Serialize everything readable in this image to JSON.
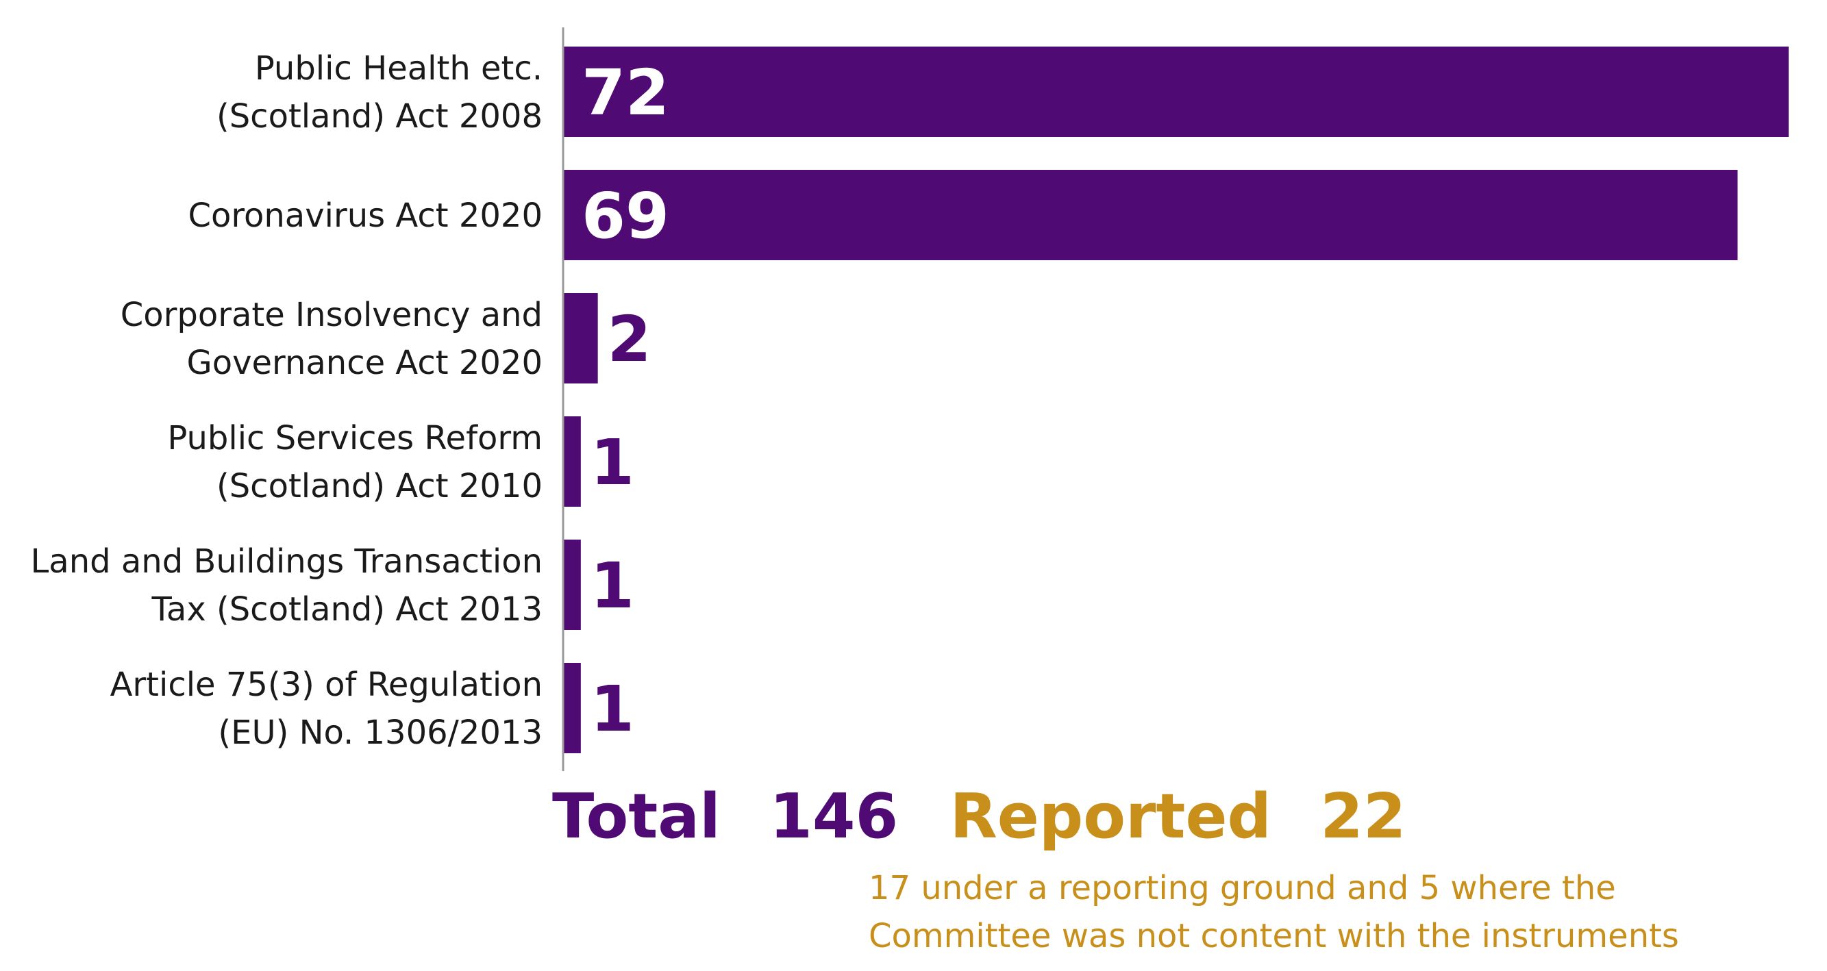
{
  "colors": {
    "bar": "#500a73",
    "accent": "#c8901a",
    "axis": "#999999"
  },
  "chart_data": {
    "type": "bar",
    "orientation": "horizontal",
    "categories": [
      [
        "Public Health etc.",
        "(Scotland) Act 2008"
      ],
      [
        "Coronavirus Act 2020"
      ],
      [
        "Corporate Insolvency and",
        "Governance Act 2020"
      ],
      [
        "Public Services Reform",
        "(Scotland) Act 2010"
      ],
      [
        "Land and Buildings Transaction",
        "Tax (Scotland) Act 2013"
      ],
      [
        "Article 75(3) of Regulation",
        "(EU) No. 1306/2013"
      ]
    ],
    "values": [
      72,
      69,
      2,
      1,
      1,
      1
    ],
    "xlim": [
      0,
      72
    ],
    "grid": false,
    "legend": "none"
  },
  "summary": {
    "total_label": "Total",
    "total_value": "146",
    "reported_label": "Reported",
    "reported_value": "22",
    "note": "17 under a reporting ground and 5 where the Committee was not content with the instruments"
  }
}
